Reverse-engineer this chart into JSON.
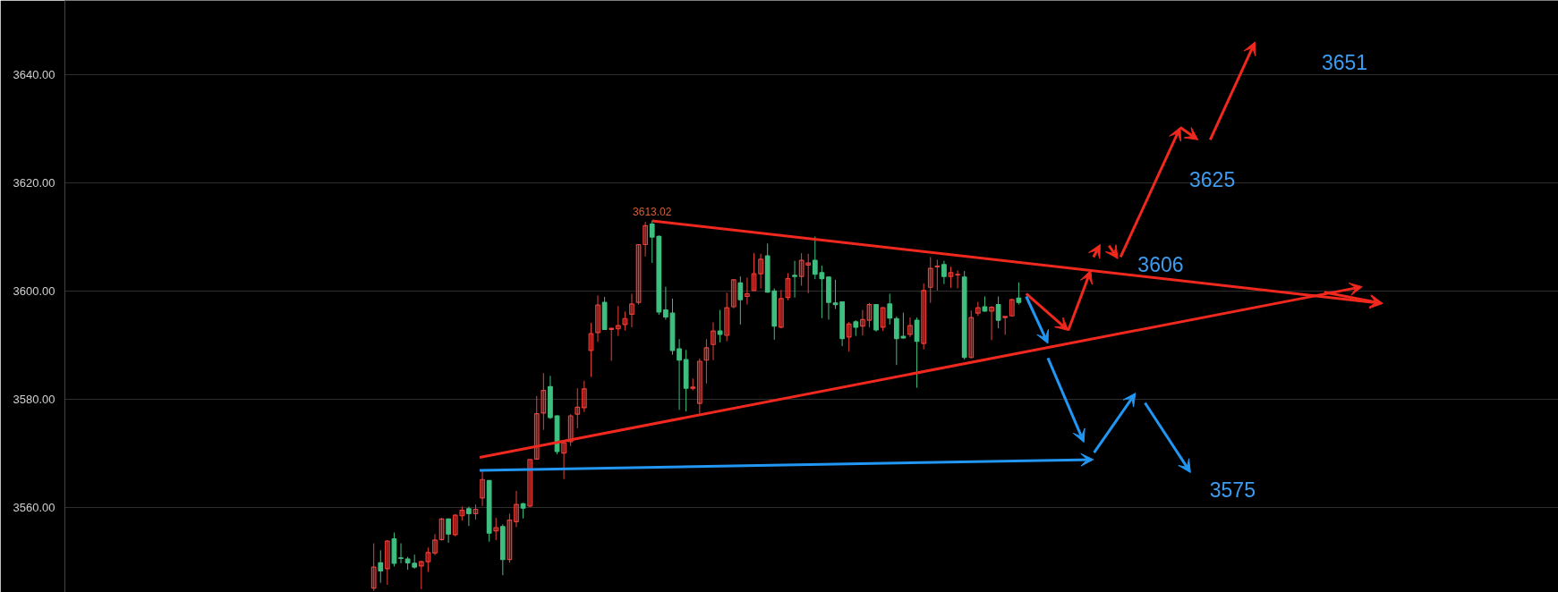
{
  "chart_data": {
    "type": "candlestick",
    "categories": [
      null,
      null,
      null,
      null,
      null,
      null,
      null,
      null,
      null,
      null,
      null,
      null,
      null,
      null,
      null,
      null,
      null,
      null,
      null,
      null,
      null,
      null,
      null,
      null,
      null,
      null,
      null,
      null,
      null,
      null,
      null,
      null,
      null,
      null,
      null,
      null,
      null,
      null,
      null,
      null,
      null,
      null,
      null,
      null,
      null,
      null,
      null,
      null,
      null,
      null,
      null,
      null,
      null,
      null,
      null,
      null,
      null,
      null,
      null,
      null,
      null,
      null,
      null,
      null,
      null,
      null,
      null,
      null,
      null,
      null,
      null,
      null,
      null,
      null,
      null,
      null,
      null,
      null,
      null,
      null,
      null,
      null,
      null,
      null,
      null,
      null,
      null,
      null,
      null,
      null,
      null,
      null,
      null,
      null,
      null,
      null,
      null,
      null,
      null,
      null,
      null,
      null,
      null,
      null,
      null,
      null,
      null,
      null,
      null,
      null,
      null,
      null,
      null,
      null,
      null,
      null,
      null,
      null,
      null,
      null,
      null,
      null,
      null,
      null,
      null,
      null,
      null,
      null,
      null,
      null,
      null,
      null,
      null,
      null,
      null,
      null,
      null,
      null,
      null,
      null,
      null,
      null,
      null,
      null,
      null,
      null,
      null,
      null,
      null,
      null,
      null,
      null,
      null,
      null,
      null,
      null,
      null,
      null,
      null,
      null,
      null,
      null,
      null,
      null,
      null,
      null,
      null,
      null,
      null,
      null,
      null,
      null,
      null,
      null,
      null,
      null,
      null,
      null,
      null,
      null,
      null,
      null,
      null,
      null,
      null,
      null,
      null,
      null,
      null,
      null,
      null,
      null,
      null,
      null,
      null,
      null,
      null,
      null,
      null,
      null,
      null,
      null,
      null,
      null,
      null,
      null,
      null,
      null,
      null,
      null,
      null,
      null,
      null,
      null,
      null,
      null,
      null,
      null,
      null,
      null
    ],
    "ohlc": [
      null,
      null,
      null,
      null,
      null,
      null,
      null,
      null,
      null,
      null,
      null,
      null,
      null,
      null,
      null,
      null,
      null,
      null,
      null,
      null,
      null,
      null,
      null,
      null,
      null,
      null,
      null,
      null,
      null,
      null,
      null,
      null,
      null,
      null,
      null,
      null,
      null,
      null,
      null,
      null,
      null,
      null,
      null,
      null,
      null,
      [
        3545,
        3553.3,
        3544.5,
        3548.9
      ],
      [
        3549.7,
        3552.0,
        3546.0,
        3548.2
      ],
      [
        3548.6,
        3553.9,
        3545.6,
        3553.7
      ],
      [
        3554.1,
        3555.3,
        3549.0,
        3549.6
      ],
      [
        3550.6,
        3553.3,
        3549.6,
        3550.5
      ],
      [
        3550.4,
        3550.8,
        3548.4,
        3549.7
      ],
      [
        3549.6,
        3551.2,
        3548.6,
        3548.9
      ],
      [
        3549.1,
        3550.1,
        3544.8,
        3549.9
      ],
      [
        3549.9,
        3552.5,
        3548.0,
        3551.6
      ],
      [
        3551.5,
        3555.0,
        3551.1,
        3553.9
      ],
      [
        3554.0,
        3558.0,
        3553.8,
        3557.8
      ],
      [
        3557.8,
        3557.9,
        3553.4,
        3555.0
      ],
      [
        3554.9,
        3558.7,
        3554.6,
        3558.5
      ],
      [
        3558.4,
        3560.1,
        3557.5,
        3559.4
      ],
      [
        3559.7,
        3560.1,
        3556.5,
        3558.8
      ],
      [
        3558.8,
        3560.5,
        3557.7,
        3559.6
      ],
      [
        3561.7,
        3566.6,
        3560.2,
        3565.1
      ],
      [
        3564.9,
        3565.0,
        3553.6,
        3555.2
      ],
      [
        3555.6,
        3558.0,
        3553.9,
        3556.2
      ],
      [
        3556.4,
        3556.8,
        3547.4,
        3550.3
      ],
      [
        3550.3,
        3558.8,
        3549.7,
        3557.6
      ],
      [
        3557.3,
        3563.0,
        3556.3,
        3560.5
      ],
      [
        3560.6,
        3560.8,
        3557.9,
        3559.8
      ],
      [
        3560.2,
        3568.8,
        3560.0,
        3568.8
      ],
      [
        3568.9,
        3580.6,
        3568.8,
        3577.3
      ],
      [
        3577.4,
        3584.8,
        3574.3,
        3581.6
      ],
      [
        3582.3,
        3584.3,
        3576.3,
        3576.6
      ],
      [
        3576.9,
        3577.0,
        3569.8,
        3570.3
      ],
      [
        3570.0,
        3572.1,
        3565.2,
        3571.9
      ],
      [
        3572.1,
        3577.2,
        3571.3,
        3576.9
      ],
      [
        3577.2,
        3582.0,
        3574.6,
        3578.5
      ],
      [
        3578.4,
        3583.4,
        3577.6,
        3581.9
      ],
      [
        3589.0,
        3594.1,
        3584.1,
        3592.1
      ],
      [
        3592.3,
        3599.2,
        3590.6,
        3597.4
      ],
      [
        3597.9,
        3598.9,
        3592.8,
        3592.9
      ],
      [
        3592.9,
        3593.2,
        3587.1,
        3593.1
      ],
      [
        3593.0,
        3597.2,
        3591.7,
        3593.6
      ],
      [
        3593.8,
        3596.2,
        3592.7,
        3594.9
      ],
      [
        3595.7,
        3599.5,
        3593.3,
        3597.6
      ],
      [
        3597.9,
        3608.6,
        3597.5,
        3608.6
      ],
      [
        3608.6,
        3612.8,
        3606.4,
        3612.1
      ],
      [
        3612.4,
        3613.02,
        3605.2,
        3610.0
      ],
      [
        3610.1,
        3610.3,
        3595.6,
        3596.1
      ],
      [
        3596.5,
        3600.8,
        3594.7,
        3595.2
      ],
      [
        3595.9,
        3598.6,
        3588.2,
        3589.0
      ],
      [
        3589.3,
        3591.1,
        3578.0,
        3587.2
      ],
      [
        3587.3,
        3589.1,
        3577.7,
        3582.0
      ],
      [
        3582.0,
        3583.8,
        3581.6,
        3582.2
      ],
      [
        3579.2,
        3587.5,
        3577.2,
        3587.0
      ],
      [
        3587.2,
        3591.1,
        3582.9,
        3589.5
      ],
      [
        3590.1,
        3594.2,
        3587.2,
        3592.6
      ],
      [
        3592.6,
        3596.5,
        3590.5,
        3592.0
      ],
      [
        3591.8,
        3599.7,
        3590.7,
        3596.9
      ],
      [
        3597.1,
        3602.2,
        3596.8,
        3602.1
      ],
      [
        3601.5,
        3602.7,
        3593.8,
        3598.4
      ],
      [
        3599.0,
        3602.5,
        3597.5,
        3599.5
      ],
      [
        3600.1,
        3607.0,
        3600.1,
        3603.2
      ],
      [
        3603.2,
        3606.9,
        3600.5,
        3605.9
      ],
      [
        3606.5,
        3608.8,
        3599.7,
        3599.8
      ],
      [
        3600.0,
        3600.5,
        3591.0,
        3593.5
      ],
      [
        3593.3,
        3600.2,
        3593.1,
        3598.6
      ],
      [
        3598.8,
        3603.3,
        3598.3,
        3602.3
      ],
      [
        3602.9,
        3605.6,
        3598.8,
        3602.7
      ],
      [
        3602.7,
        3607.0,
        3601.0,
        3605.7
      ],
      [
        3604.8,
        3606.9,
        3599.6,
        3605.2
      ],
      [
        3605.7,
        3610.1,
        3602.2,
        3603.1
      ],
      [
        3603.4,
        3604.7,
        3595.0,
        3602.3
      ],
      [
        3602.6,
        3602.7,
        3594.7,
        3597.9
      ],
      [
        3597.8,
        3602.1,
        3596.7,
        3597.5
      ],
      [
        3598.0,
        3598.0,
        3589.8,
        3591.2
      ],
      [
        3591.5,
        3594.3,
        3588.8,
        3593.9
      ],
      [
        3594.3,
        3594.6,
        3591.7,
        3593.3
      ],
      [
        3593.5,
        3596.5,
        3591.8,
        3594.7
      ],
      [
        3594.6,
        3597.8,
        3593.3,
        3597.5
      ],
      [
        3597.5,
        3597.5,
        3592.5,
        3592.8
      ],
      [
        3593.3,
        3597.0,
        3592.6,
        3596.9
      ],
      [
        3597.6,
        3599.5,
        3593.8,
        3595.0
      ],
      [
        3594.9,
        3595.3,
        3586.3,
        3591.2
      ],
      [
        3591.6,
        3596.0,
        3591.2,
        3591.3
      ],
      [
        3592.0,
        3595.1,
        3591.5,
        3593.6
      ],
      [
        3594.6,
        3595.1,
        3582.1,
        3590.7
      ],
      [
        3590.3,
        3601.4,
        3589.2,
        3600.1
      ],
      [
        3600.7,
        3606.3,
        3597.8,
        3604.2
      ],
      [
        3604.5,
        3605.8,
        3600.1,
        3604.6
      ],
      [
        3604.9,
        3605.6,
        3601.3,
        3602.7
      ],
      [
        3602.7,
        3604.5,
        3600.6,
        3603.4
      ],
      [
        3603.0,
        3603.8,
        3600.5,
        3603.1
      ],
      [
        3602.6,
        3603.7,
        3587.3,
        3587.7
      ],
      [
        3587.7,
        3596.4,
        3587.5,
        3595.1
      ],
      [
        3595.9,
        3598.0,
        3595.4,
        3596.9
      ],
      [
        3597.1,
        3599.0,
        3596.2,
        3596.3
      ],
      [
        3596.3,
        3597.2,
        3590.9,
        3597.0
      ],
      [
        3597.5,
        3599.0,
        3593.1,
        3594.6
      ],
      [
        3595.1,
        3595.3,
        3591.9,
        3595.3
      ],
      [
        3595.4,
        3598.6,
        3595.3,
        3598.4
      ],
      [
        3598.7,
        3601.6,
        3597.5,
        3597.9
      ],
      null,
      null,
      null,
      null,
      null,
      null,
      null,
      null,
      null,
      null,
      null,
      null,
      null,
      null,
      null,
      null,
      null,
      null,
      null,
      null,
      null,
      null,
      null,
      null,
      null,
      null,
      null,
      null,
      null,
      null,
      null,
      null,
      null,
      null,
      null,
      null,
      null,
      null,
      null,
      null,
      null,
      null,
      null,
      null,
      null,
      null,
      null,
      null,
      null,
      null,
      null,
      null,
      null,
      null,
      null,
      null,
      null,
      null,
      null,
      null,
      null,
      null,
      null,
      null,
      null,
      null,
      null,
      null,
      null,
      null,
      null,
      null,
      null,
      null,
      null,
      null,
      null,
      null,
      null
    ],
    "colors": [
      null,
      null,
      null,
      null,
      null,
      null,
      null,
      null,
      null,
      null,
      null,
      null,
      null,
      null,
      null,
      null,
      null,
      null,
      null,
      null,
      null,
      null,
      null,
      null,
      null,
      null,
      null,
      null,
      null,
      null,
      null,
      null,
      null,
      null,
      null,
      null,
      null,
      null,
      null,
      null,
      null,
      null,
      null,
      null,
      null,
      "#e8403a",
      "#3fbf7f",
      "#e8403a",
      "#3fbf7f",
      "#3fbf7f",
      "#3fbf7f",
      "#3fbf7f",
      "#e8403a",
      "#e8403a",
      "#e8403a",
      "#e8403a",
      "#3fbf7f",
      "#e8403a",
      "#e8403a",
      "#3fbf7f",
      "#e8403a",
      "#e8403a",
      "#3fbf7f",
      "#e8403a",
      "#3fbf7f",
      "#e8403a",
      "#e8403a",
      "#3fbf7f",
      "#e8403a",
      "#e8403a",
      "#e8403a",
      "#3fbf7f",
      "#3fbf7f",
      "#e8403a",
      "#e8403a",
      "#e8403a",
      "#e8403a",
      "#e8403a",
      "#e8403a",
      "#3fbf7f",
      "#e8403a",
      "#e8403a",
      "#e8403a",
      "#e8403a",
      "#e8403a",
      "#e8403a",
      "#3fbf7f",
      "#3fbf7f",
      "#3fbf7f",
      "#3fbf7f",
      "#3fbf7f",
      "#3fbf7f",
      "#e8403a",
      "#e8403a",
      "#e8403a",
      "#e8403a",
      "#3fbf7f",
      "#e8403a",
      "#e8403a",
      "#3fbf7f",
      "#e8403a",
      "#e8403a",
      "#e8403a",
      "#3fbf7f",
      "#3fbf7f",
      "#e8403a",
      "#e8403a",
      "#3fbf7f",
      "#e8403a",
      "#e8403a",
      "#3fbf7f",
      "#3fbf7f",
      "#3fbf7f",
      "#3fbf7f",
      "#3fbf7f",
      "#e8403a",
      "#3fbf7f",
      "#e8403a",
      "#e8403a",
      "#3fbf7f",
      "#e8403a",
      "#3fbf7f",
      "#3fbf7f",
      "#3fbf7f",
      "#e8403a",
      "#3fbf7f",
      "#e8403a",
      "#e8403a",
      "#e8403a",
      "#3fbf7f",
      "#e8403a",
      "#e8403a",
      "#3fbf7f",
      "#e8403a",
      "#e8403a",
      "#3fbf7f",
      "#e8403a",
      "#3fbf7f",
      "#e8403a",
      "#e8403a",
      "#3fbf7f",
      null,
      null,
      null,
      null,
      null,
      null,
      null,
      null,
      null,
      null,
      null,
      null,
      null,
      null,
      null,
      null,
      null,
      null,
      null,
      null,
      null,
      null,
      null,
      null,
      null,
      null,
      null,
      null,
      null,
      null,
      null,
      null,
      null,
      null,
      null,
      null,
      null,
      null,
      null,
      null,
      null,
      null,
      null,
      null,
      null,
      null,
      null,
      null,
      null,
      null,
      null,
      null,
      null,
      null,
      null,
      null,
      null,
      null,
      null,
      null,
      null,
      null,
      null,
      null,
      null,
      null,
      null,
      null,
      null,
      null,
      null,
      null,
      null,
      null,
      null,
      null,
      null,
      null,
      null
    ],
    "ylim": [
      3544.2,
      3653.8
    ],
    "yticks": [
      {
        "value": 3560,
        "label": "3560.00"
      },
      {
        "value": 3580,
        "label": "3580.00"
      },
      {
        "value": 3600,
        "label": "3600.00"
      },
      {
        "value": 3620,
        "label": "3620.00"
      },
      {
        "value": 3640,
        "label": "3640.00"
      }
    ],
    "grid": "y",
    "tick_labels": "y",
    "annotations": [
      "3651",
      "3625",
      "3606",
      "3575",
      "3613.02"
    ]
  }
}
